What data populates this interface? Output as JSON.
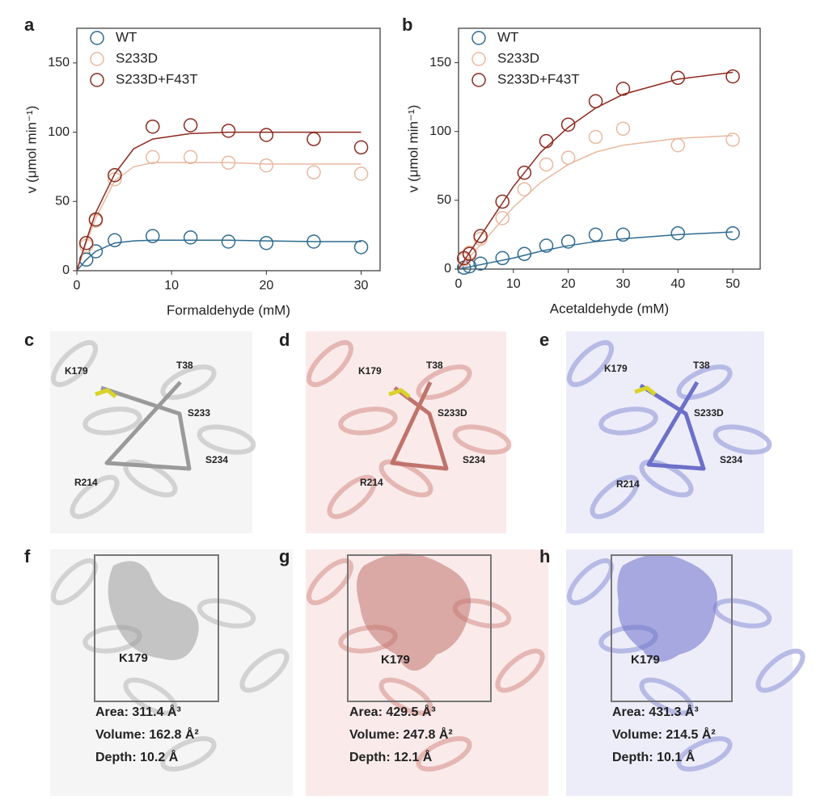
{
  "chart_data": [
    {
      "type": "scatter",
      "panel_label": "a",
      "x_label": "Formaldehyde (mM)",
      "y_label": "v (μmol min⁻¹)",
      "x": [
        1,
        2,
        4,
        8,
        12,
        16,
        20,
        25,
        30
      ],
      "fit_x": [
        0,
        1,
        2,
        4,
        6,
        8,
        12,
        16,
        20,
        25,
        30
      ],
      "series": [
        {
          "name": "WT",
          "color": "#2f6b8f",
          "values": [
            8,
            14,
            22,
            25,
            24,
            21,
            20,
            21,
            17
          ],
          "fit": [
            0,
            8,
            14,
            20,
            21.5,
            22,
            22,
            22,
            21.5,
            21,
            21
          ]
        },
        {
          "name": "S233D",
          "color": "#e8b9a0",
          "values": [
            18,
            36,
            66,
            82,
            82,
            78,
            76,
            71,
            70
          ],
          "fit": [
            0,
            20,
            38,
            65,
            75,
            78,
            78,
            78,
            77,
            77,
            77
          ]
        },
        {
          "name": "S233D+F43T",
          "color": "#8b2a1f",
          "values": [
            20,
            37,
            69,
            104,
            105,
            101,
            98,
            95,
            89
          ],
          "fit": [
            0,
            22,
            42,
            70,
            88,
            95,
            99,
            100,
            100,
            100,
            100
          ]
        }
      ],
      "xlim": [
        0,
        32
      ],
      "ylim": [
        0,
        175
      ],
      "xticks": [
        0,
        10,
        20,
        30
      ],
      "yticks": [
        0,
        50,
        100,
        150
      ],
      "legend": "upper left"
    },
    {
      "type": "scatter",
      "panel_label": "b",
      "x_label": "Acetaldehyde (mM)",
      "y_label": "v (μmol min⁻¹)",
      "x": [
        1,
        2,
        4,
        8,
        12,
        16,
        20,
        25,
        30,
        40,
        50
      ],
      "fit_x": [
        0,
        5,
        10,
        15,
        20,
        25,
        30,
        40,
        50
      ],
      "series": [
        {
          "name": "WT",
          "color": "#2f6b8f",
          "values": [
            1,
            2,
            4,
            8,
            11,
            17,
            20,
            25,
            25,
            26,
            26
          ],
          "fit": [
            0,
            4,
            8,
            13,
            17,
            20,
            22,
            25,
            27
          ]
        },
        {
          "name": "S233D",
          "color": "#e8b9a0",
          "values": [
            7,
            12,
            22,
            37,
            58,
            76,
            81,
            96,
            102,
            90,
            94
          ],
          "fit": [
            0,
            22,
            45,
            63,
            76,
            85,
            90,
            95,
            97
          ]
        },
        {
          "name": "S233D+F43T",
          "color": "#8b2a1f",
          "values": [
            8,
            11,
            24,
            49,
            70,
            93,
            105,
            122,
            131,
            139,
            140
          ],
          "fit": [
            0,
            30,
            60,
            85,
            103,
            117,
            127,
            138,
            143
          ]
        }
      ],
      "xlim": [
        0,
        55
      ],
      "ylim": [
        0,
        175
      ],
      "xticks": [
        0,
        10,
        20,
        30,
        40,
        50
      ],
      "yticks": [
        0,
        50,
        100,
        150
      ],
      "legend": "upper left"
    }
  ],
  "panels": [
    {
      "label": "c",
      "residues": [
        "K179",
        "T38",
        "S233",
        "S234",
        "R214"
      ]
    },
    {
      "label": "d",
      "residues": [
        "K179",
        "T38",
        "S233D",
        "S234",
        "R214"
      ]
    },
    {
      "label": "e",
      "residues": [
        "K179",
        "T38",
        "S233D",
        "S234",
        "R214"
      ]
    },
    {
      "label": "f",
      "residues": [
        "K179"
      ],
      "stats": [
        "Area: 311.4 Å³",
        "Volume: 162.8 Å²",
        "Depth: 10.2 Å"
      ]
    },
    {
      "label": "g",
      "residues": [
        "K179"
      ],
      "stats": [
        "Area: 429.5 Å³",
        "Volume: 247.8 Å²",
        "Depth: 12.1 Å"
      ]
    },
    {
      "label": "h",
      "residues": [
        "K179"
      ],
      "stats": [
        "Area: 431.3 Å³",
        "Volume: 214.5 Å²",
        "Depth: 10.1 Å"
      ]
    }
  ]
}
